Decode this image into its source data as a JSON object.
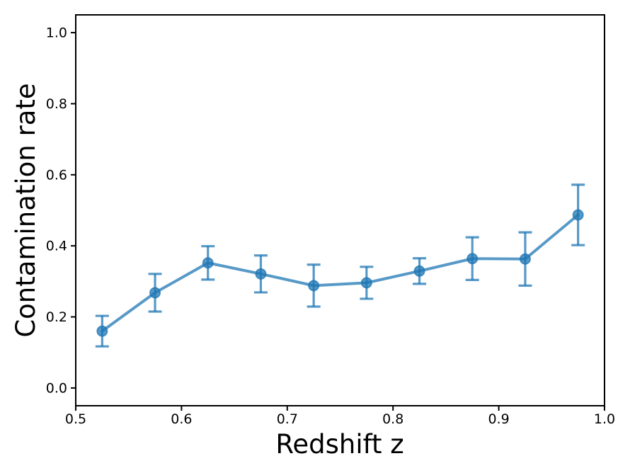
{
  "chart_data": {
    "type": "line",
    "title": "",
    "xlabel": "Redshift z",
    "ylabel": "Contamination rate",
    "x": [
      0.525,
      0.575,
      0.625,
      0.675,
      0.725,
      0.775,
      0.825,
      0.875,
      0.925,
      0.975
    ],
    "series": [
      {
        "name": "contamination-rate",
        "values": [
          0.16,
          0.268,
          0.352,
          0.321,
          0.288,
          0.296,
          0.329,
          0.364,
          0.363,
          0.487
        ],
        "yerr": [
          0.043,
          0.053,
          0.047,
          0.052,
          0.059,
          0.045,
          0.036,
          0.06,
          0.075,
          0.085
        ]
      }
    ],
    "xlim": [
      0.5,
      1.0
    ],
    "ylim": [
      -0.05,
      1.05
    ],
    "xticks": [
      0.5,
      0.6,
      0.7,
      0.8,
      0.9,
      1.0
    ],
    "xtick_labels": [
      "0.5",
      "0.6",
      "0.7",
      "0.8",
      "0.9",
      "1.0"
    ],
    "yticks": [
      0.0,
      0.2,
      0.4,
      0.6,
      0.8,
      1.0
    ],
    "ytick_labels": [
      "0.0",
      "0.2",
      "0.4",
      "0.6",
      "0.8",
      "1.0"
    ],
    "grid": false,
    "legend": false,
    "marker": "circle",
    "errorbar_caps": true,
    "line_color": "#1f77b4",
    "line_alpha": 0.75,
    "axis_color": "#000000",
    "background_color": "#ffffff"
  }
}
